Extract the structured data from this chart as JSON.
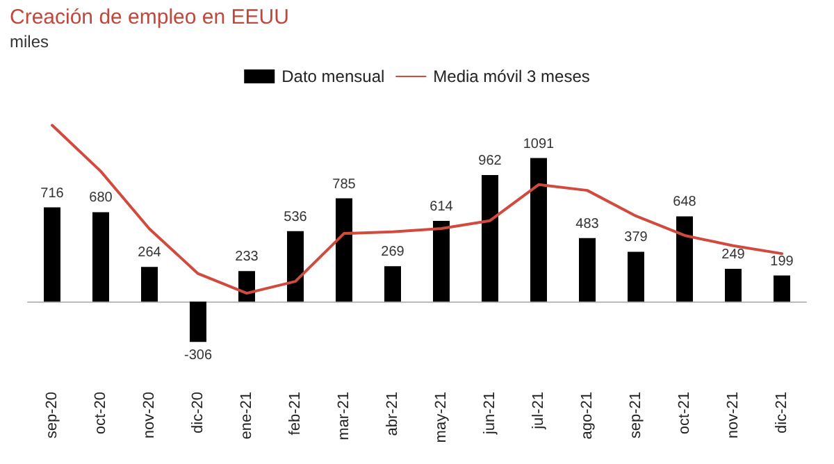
{
  "chart_data": {
    "type": "bar",
    "title": "Creación de empleo en EEUU",
    "subtitle": "miles",
    "categories": [
      "sep-20",
      "oct-20",
      "nov-20",
      "dic-20",
      "ene-21",
      "feb-21",
      "mar-21",
      "abr-21",
      "may-21",
      "jun-21",
      "jul-21",
      "ago-21",
      "sep-21",
      "oct-21",
      "nov-21",
      "dic-21"
    ],
    "series": [
      {
        "name": "Dato mensual",
        "color": "#000000",
        "values": [
          716,
          680,
          264,
          -306,
          233,
          536,
          785,
          269,
          614,
          962,
          1091,
          483,
          379,
          648,
          249,
          199
        ],
        "value_labels": [
          "716",
          "680",
          "264",
          "-306",
          "233",
          "536",
          "785",
          "269",
          "614",
          "962",
          "1091",
          "483",
          "379",
          "648",
          "249",
          "199"
        ]
      },
      {
        "name": "Media móvil 3 meses",
        "type": "line",
        "color": "#d24a3e",
        "values": [
          1340,
          990,
          553,
          213,
          64,
          154,
          518,
          530,
          556,
          615,
          889,
          845,
          651,
          503,
          425,
          365
        ]
      }
    ],
    "legend": "top",
    "grid": false,
    "marker": "none",
    "line_style": "solid"
  }
}
